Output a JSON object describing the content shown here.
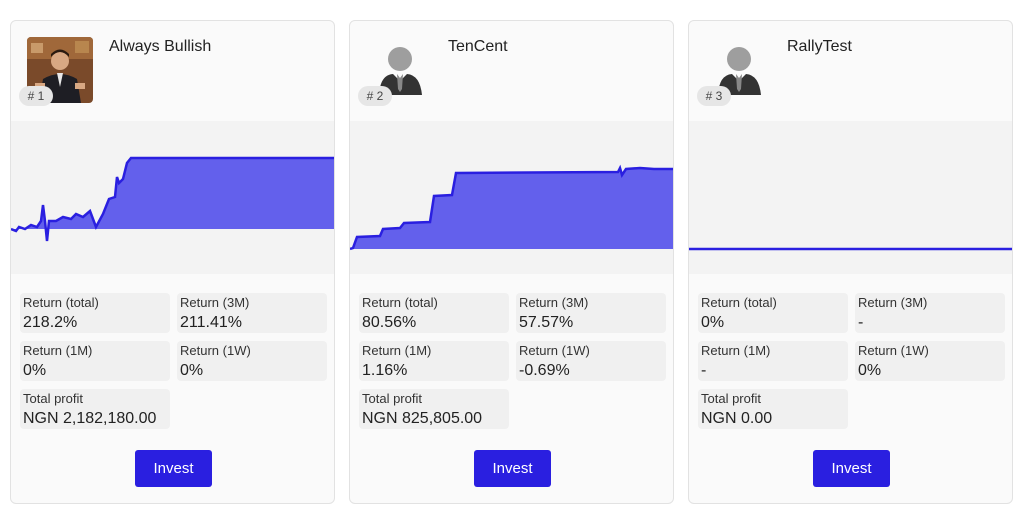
{
  "cards": [
    {
      "name": "Always Bullish",
      "rank": "# 1",
      "avatar": "photo-avatar",
      "stats": {
        "ret_total_label": "Return (total)",
        "ret_total": "218.2%",
        "ret_3m_label": "Return (3M)",
        "ret_3m": "211.41%",
        "ret_1m_label": "Return (1M)",
        "ret_1m": "0%",
        "ret_1w_label": "Return (1W)",
        "ret_1w": "0%",
        "profit_label": "Total profit",
        "profit": "NGN 2,182,180.00"
      },
      "invest_label": "Invest"
    },
    {
      "name": "TenCent",
      "rank": "# 2",
      "avatar": "person-silhouette-icon",
      "stats": {
        "ret_total_label": "Return (total)",
        "ret_total": "80.56%",
        "ret_3m_label": "Return (3M)",
        "ret_3m": "57.57%",
        "ret_1m_label": "Return (1M)",
        "ret_1m": "1.16%",
        "ret_1w_label": "Return (1W)",
        "ret_1w": "-0.69%",
        "profit_label": "Total profit",
        "profit": "NGN 825,805.00"
      },
      "invest_label": "Invest"
    },
    {
      "name": "RallyTest",
      "rank": "# 3",
      "avatar": "person-silhouette-icon",
      "stats": {
        "ret_total_label": "Return (total)",
        "ret_total": "0%",
        "ret_3m_label": "Return (3M)",
        "ret_3m": "-",
        "ret_1m_label": "Return (1M)",
        "ret_1m": "-",
        "ret_1w_label": "Return (1W)",
        "ret_1w": "0%",
        "profit_label": "Total profit",
        "profit": "NGN 0.00"
      },
      "invest_label": "Invest"
    }
  ],
  "colors": {
    "accent": "#2a1fe0",
    "area_fill": "#6360ec",
    "area_line": "#2a1fe0"
  }
}
